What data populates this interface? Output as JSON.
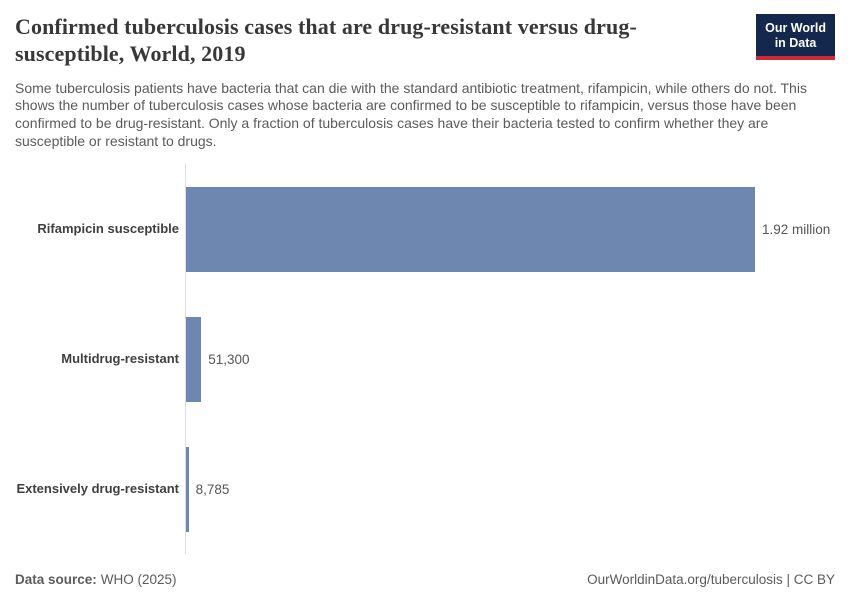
{
  "header": {
    "title": "Confirmed tuberculosis cases that are drug-resistant versus drug-susceptible, World, 2019",
    "subtitle": "Some tuberculosis patients have bacteria that can die with the standard antibiotic treatment, rifampicin, while others do not. This shows the number of tuberculosis cases whose bacteria are confirmed to be susceptible to rifampicin, versus those have been confirmed to be drug-resistant. Only a fraction of tuberculosis cases have their bacteria tested to confirm whether they are susceptible or resistant to drugs.",
    "logo": {
      "line1": "Our World",
      "line2": "in Data"
    }
  },
  "chart_data": {
    "type": "bar",
    "orientation": "horizontal",
    "title": "Confirmed tuberculosis cases that are drug-resistant versus drug-susceptible, World, 2019",
    "categories": [
      "Rifampicin susceptible",
      "Multidrug-resistant",
      "Extensively drug-resistant"
    ],
    "values": [
      1920000,
      51300,
      8785
    ],
    "value_labels": [
      "1.92 million",
      "51,300",
      "8,785"
    ],
    "xlim": [
      0,
      1920000
    ],
    "xlabel": "",
    "ylabel": "",
    "grid": false,
    "legend": "none",
    "bar_color": "#6d87b0"
  },
  "footer": {
    "datasource_label": "Data source:",
    "datasource_value": "WHO (2025)",
    "attribution": "OurWorldinData.org/tuberculosis | CC BY"
  },
  "colors": {
    "bar": "#6d87b0",
    "logo_background": "#13284c",
    "logo_accent": "#cc2a36",
    "axis_line": "#dcdcdc"
  }
}
